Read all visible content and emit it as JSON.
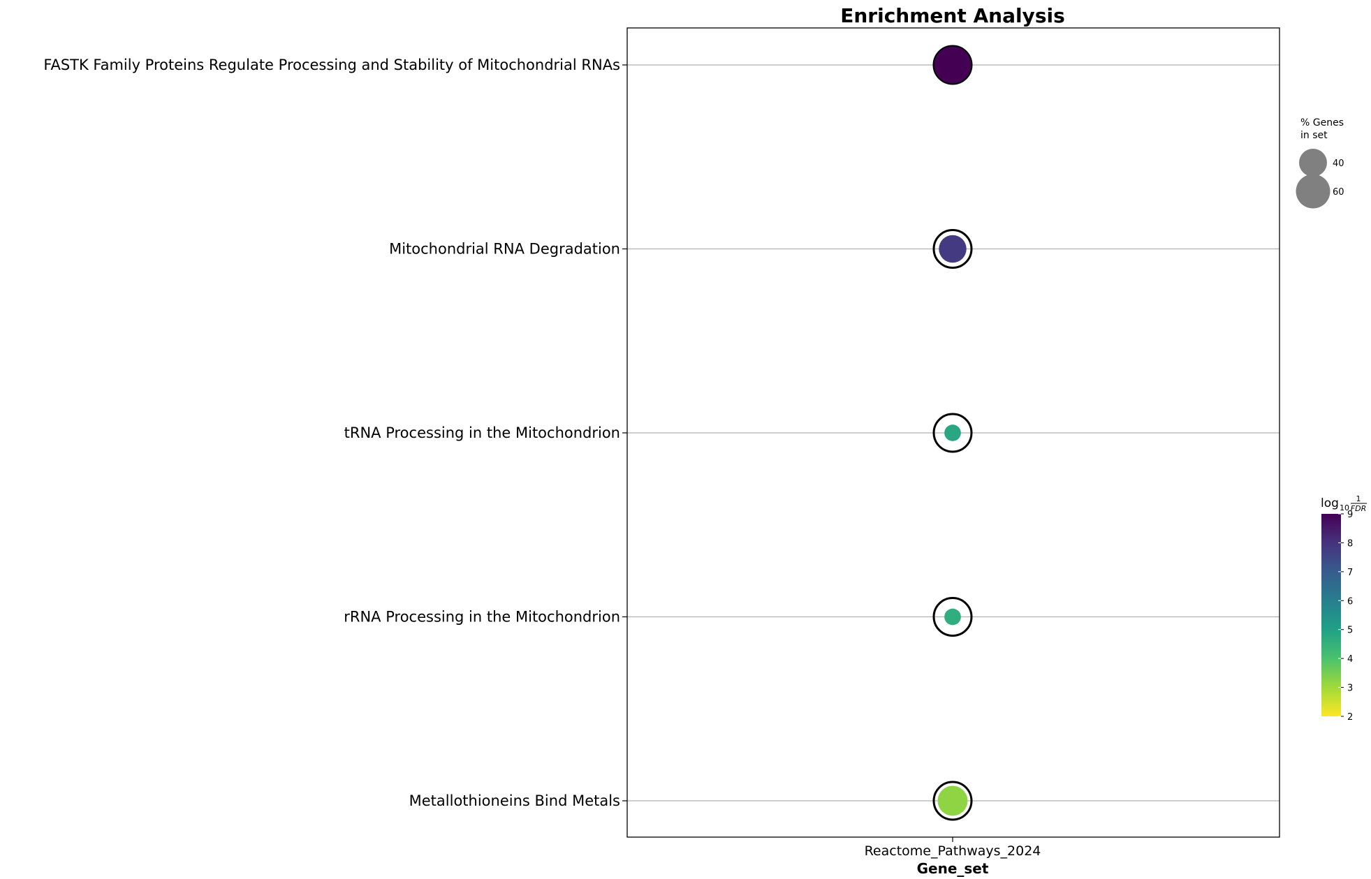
{
  "chart_data": {
    "type": "scatter",
    "title": "Enrichment Analysis",
    "xlabel": "Gene_set",
    "x_categories": [
      "Reactome_Pathways_2024"
    ],
    "y_categories": [
      "FASTK Family Proteins Regulate Processing and Stability of Mitochondrial RNAs",
      "Mitochondrial RNA Degradation",
      "tRNA Processing in the Mitochondrion",
      "rRNA Processing in the Mitochondrion",
      "Metallothioneins Bind Metals"
    ],
    "points": [
      {
        "term": "FASTK Family Proteins Regulate Processing and Stability of Mitochondrial RNAs",
        "gene_set": "Reactome_Pathways_2024",
        "neg_log10_fdr": 9.0,
        "pct_genes": 70,
        "highlighted": true
      },
      {
        "term": "Mitochondrial RNA Degradation",
        "gene_set": "Reactome_Pathways_2024",
        "neg_log10_fdr": 7.8,
        "pct_genes": 39,
        "highlighted": true
      },
      {
        "term": "tRNA Processing in the Mitochondrion",
        "gene_set": "Reactome_Pathways_2024",
        "neg_log10_fdr": 4.8,
        "pct_genes": 14,
        "highlighted": true
      },
      {
        "term": "rRNA Processing in the Mitochondrion",
        "gene_set": "Reactome_Pathways_2024",
        "neg_log10_fdr": 4.6,
        "pct_genes": 14,
        "highlighted": true
      },
      {
        "term": "Metallothioneins Bind Metals",
        "gene_set": "Reactome_Pathways_2024",
        "neg_log10_fdr": 3.2,
        "pct_genes": 46,
        "highlighted": true
      }
    ],
    "size_legend": {
      "title_lines": [
        "% Genes",
        "in set"
      ],
      "values": [
        40,
        60
      ],
      "color": "#808080"
    },
    "colorbar": {
      "title_prefix": "log",
      "title_sub": "10",
      "title_frac_num": "1",
      "title_frac_den": "FDR",
      "range": [
        2,
        9
      ],
      "ticks": [
        2,
        3,
        4,
        5,
        6,
        7,
        8,
        9
      ],
      "colormap": "viridis_r"
    },
    "grid": true,
    "highlight_ring_color": "#000000"
  }
}
